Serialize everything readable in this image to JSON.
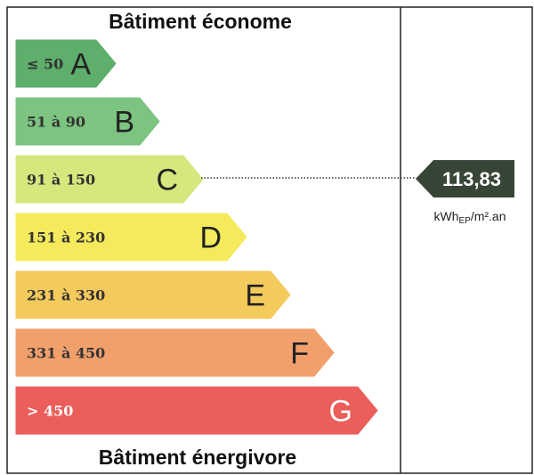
{
  "header": {
    "top": "Bâtiment économe",
    "bottom": "Bâtiment énergivore"
  },
  "bands": [
    {
      "range": "≤ 50",
      "letter": "A",
      "color": "#5eae6c"
    },
    {
      "range": "51 à 90",
      "letter": "B",
      "color": "#7cc480"
    },
    {
      "range": "91 à 150",
      "letter": "C",
      "color": "#d7e77e"
    },
    {
      "range": "151 à 230",
      "letter": "D",
      "color": "#f4ea5c"
    },
    {
      "range": "231 à 330",
      "letter": "E",
      "color": "#f3ca5c"
    },
    {
      "range": "331 à 450",
      "letter": "F",
      "color": "#f1a06c"
    },
    {
      "range": "> 450",
      "letter": "G",
      "color": "#eb5e5a"
    }
  ],
  "indicator": {
    "value": "113,83",
    "unit_main": "kWh",
    "unit_sub": "EP",
    "unit_end": "/m².an"
  }
}
